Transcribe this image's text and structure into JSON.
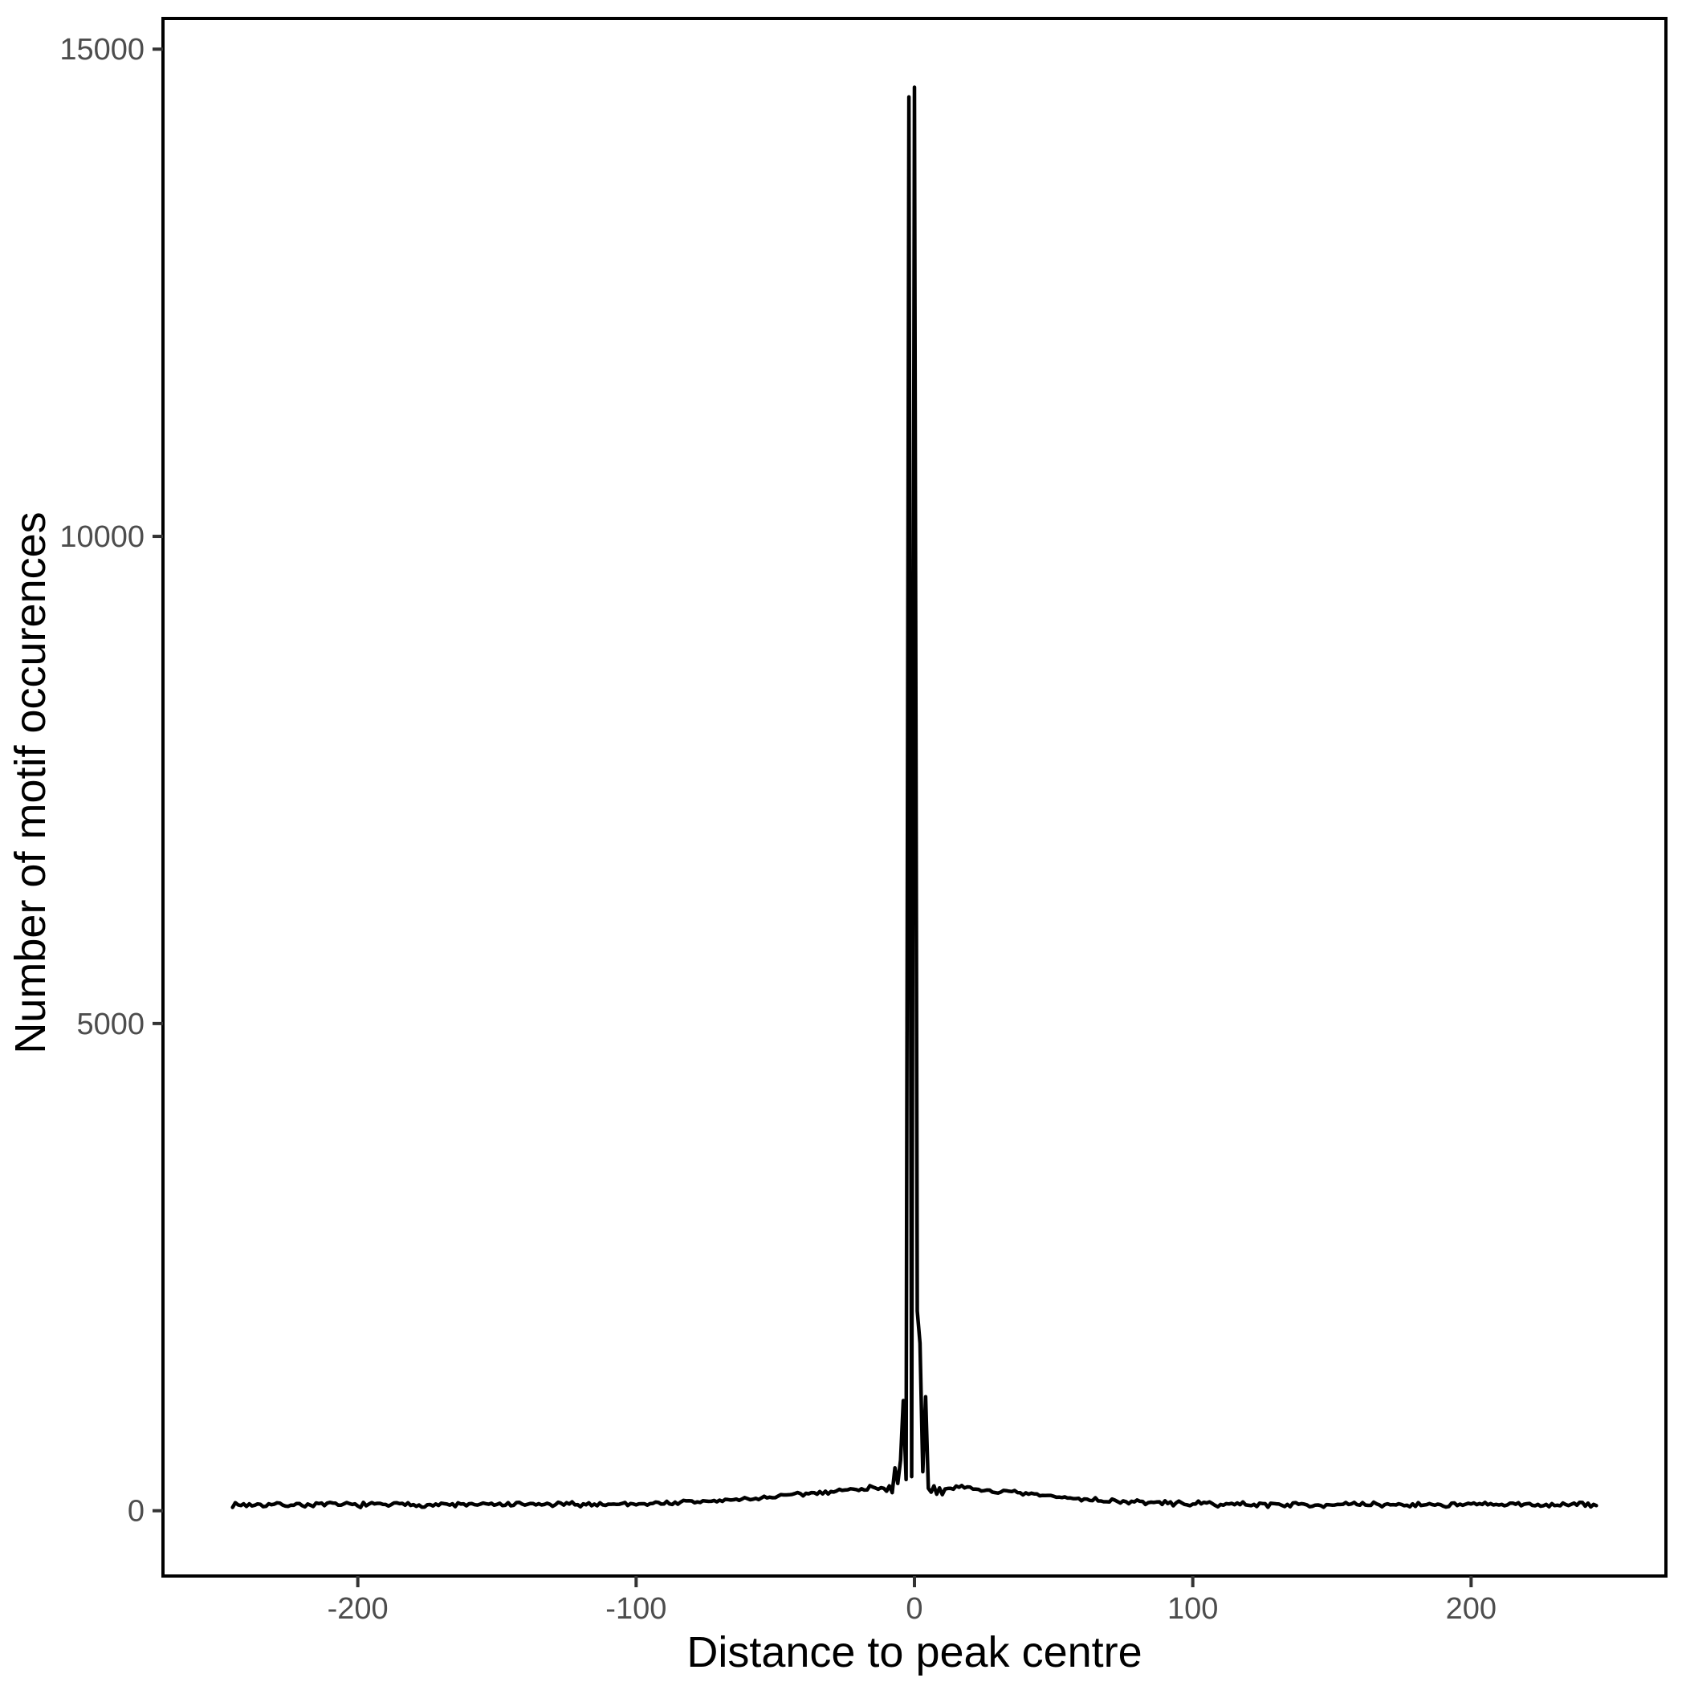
{
  "figure": {
    "background": "#ffffff"
  },
  "chart_data": {
    "type": "line",
    "title": "",
    "xlabel": "Distance to peak centre",
    "ylabel": "Number of motif occurences",
    "x_ticks": [
      -200,
      -100,
      0,
      100,
      200
    ],
    "y_ticks": [
      0,
      5000,
      10000,
      15000
    ],
    "xlim": [
      -270,
      270
    ],
    "ylim": [
      -670,
      15315
    ],
    "data_x_range": [
      -245,
      245
    ],
    "grid": "off",
    "legend": "none",
    "line_color": "#000000",
    "axis_text_color": "#4d4d4d",
    "axis_title_color": "#000000",
    "panel_border_color": "#000000",
    "peak_summary": {
      "max_x": 0,
      "max_value": 14610,
      "secondary_peak_x": -2,
      "secondary_peak_value": 14510,
      "description": "Two adjacent sharp spikes at the peak centre rising to ~14500-14600 motif occurrences; flanking minor spikes ~1100-2000; noisy baseline ~60 rising to ~250 near the centre."
    },
    "center_profile": [
      [
        -10,
        200
      ],
      [
        -9,
        255
      ],
      [
        -8,
        185
      ],
      [
        -7,
        440
      ],
      [
        -6,
        280
      ],
      [
        -5,
        520
      ],
      [
        -4,
        1130
      ],
      [
        -3,
        320
      ],
      [
        -2,
        14510
      ],
      [
        -1,
        350
      ],
      [
        0,
        14610
      ],
      [
        1,
        2050
      ],
      [
        2,
        1720
      ],
      [
        3,
        400
      ],
      [
        4,
        1170
      ],
      [
        5,
        230
      ],
      [
        6,
        190
      ],
      [
        7,
        255
      ],
      [
        8,
        170
      ],
      [
        9,
        235
      ],
      [
        10,
        165
      ]
    ],
    "baseline": {
      "level": 62,
      "center_boost": 190,
      "boost_width": 55,
      "boost_power": 1.8,
      "noise_amplitude": 30
    }
  }
}
